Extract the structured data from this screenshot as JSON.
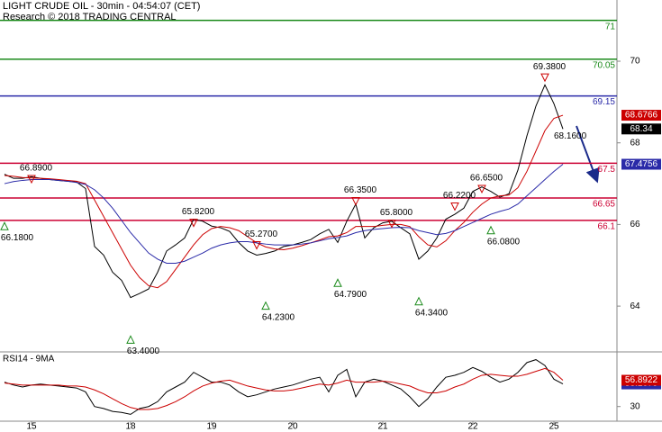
{
  "chart_data": [
    {
      "type": "line",
      "title": "LIGHT CRUDE OIL - 30min - 04:54:07 (CET)",
      "subtitle": "Research © 2018 TRADING CENTRAL",
      "categories": [
        null,
        null,
        null,
        "15",
        null,
        null,
        null,
        null,
        null,
        null,
        null,
        null,
        null,
        null,
        "18",
        null,
        null,
        null,
        null,
        null,
        null,
        null,
        null,
        "19",
        null,
        null,
        null,
        null,
        null,
        null,
        null,
        null,
        "20",
        null,
        null,
        null,
        null,
        null,
        null,
        null,
        null,
        null,
        "21",
        null,
        null,
        null,
        null,
        null,
        null,
        null,
        null,
        null,
        "22",
        null,
        null,
        null,
        null,
        null,
        null,
        null,
        null,
        "25",
        null
      ],
      "ylim": [
        62.9,
        71.5
      ],
      "yticks": [
        70,
        68,
        66,
        64
      ],
      "series": [
        {
          "color": "#000000",
          "values": [
            67.23,
            67.13,
            67.13,
            67.17,
            67.13,
            67.1,
            67.08,
            67.06,
            67.04,
            66.88,
            65.46,
            65.25,
            64.83,
            64.63,
            64.21,
            64.31,
            64.42,
            64.83,
            65.35,
            65.5,
            65.67,
            66.13,
            66.08,
            65.96,
            65.92,
            65.83,
            65.56,
            65.35,
            65.25,
            65.29,
            65.35,
            65.46,
            65.5,
            65.56,
            65.63,
            65.77,
            65.88,
            65.56,
            66.08,
            66.5,
            65.67,
            65.92,
            66.04,
            66.08,
            65.92,
            65.77,
            65.15,
            65.35,
            65.67,
            66.13,
            66.25,
            66.4,
            66.81,
            66.92,
            66.81,
            66.67,
            66.75,
            67.33,
            68.17,
            68.9,
            69.42,
            68.96,
            68.34
          ]
        },
        {
          "color": "#cc0000",
          "values": [
            67.2,
            67.18,
            67.15,
            67.14,
            67.13,
            67.12,
            67.1,
            67.08,
            67.06,
            67.0,
            66.6,
            66.2,
            65.8,
            65.4,
            65.0,
            64.7,
            64.5,
            64.45,
            64.6,
            64.9,
            65.2,
            65.5,
            65.75,
            65.9,
            65.95,
            65.92,
            65.85,
            65.7,
            65.55,
            65.45,
            65.4,
            65.38,
            65.42,
            65.48,
            65.55,
            65.62,
            65.7,
            65.72,
            65.8,
            65.95,
            65.95,
            65.95,
            65.98,
            66.0,
            66.0,
            65.95,
            65.7,
            65.5,
            65.45,
            65.6,
            65.85,
            66.05,
            66.3,
            66.5,
            66.65,
            66.7,
            66.72,
            66.9,
            67.3,
            67.8,
            68.3,
            68.6,
            68.6766
          ]
        },
        {
          "color": "#2a2aa8",
          "values": [
            67.0,
            67.05,
            67.08,
            67.1,
            67.1,
            67.1,
            67.08,
            67.06,
            67.03,
            66.98,
            66.85,
            66.65,
            66.4,
            66.1,
            65.8,
            65.55,
            65.3,
            65.15,
            65.05,
            65.05,
            65.1,
            65.2,
            65.3,
            65.42,
            65.5,
            65.55,
            65.58,
            65.58,
            65.55,
            65.52,
            65.5,
            65.5,
            65.5,
            65.52,
            65.55,
            65.6,
            65.65,
            65.68,
            65.72,
            65.8,
            65.85,
            65.88,
            65.9,
            65.92,
            65.93,
            65.92,
            65.85,
            65.8,
            65.75,
            65.78,
            65.85,
            65.95,
            66.05,
            66.15,
            66.25,
            66.32,
            66.38,
            66.5,
            66.7,
            66.9,
            67.1,
            67.3,
            67.4756
          ]
        }
      ],
      "pivot_highs": {
        "color": "#cc0000",
        "values": [
          null,
          null,
          null,
          66.89,
          null,
          null,
          null,
          null,
          null,
          null,
          null,
          null,
          null,
          null,
          null,
          null,
          null,
          null,
          null,
          null,
          null,
          65.82,
          null,
          null,
          null,
          null,
          null,
          null,
          65.27,
          null,
          null,
          null,
          null,
          null,
          null,
          null,
          null,
          null,
          null,
          66.35,
          null,
          null,
          null,
          65.8,
          null,
          null,
          null,
          null,
          null,
          null,
          66.22,
          null,
          null,
          66.65,
          null,
          null,
          null,
          null,
          null,
          null,
          69.38,
          null,
          null
        ],
        "value_labels": [
          null,
          null,
          null,
          "66.8900",
          null,
          null,
          null,
          null,
          null,
          null,
          null,
          null,
          null,
          null,
          null,
          null,
          null,
          null,
          null,
          null,
          null,
          "65.8200",
          null,
          null,
          null,
          null,
          null,
          null,
          "65.2700",
          null,
          null,
          null,
          null,
          null,
          null,
          null,
          null,
          null,
          null,
          "66.3500",
          null,
          null,
          null,
          "65.8000",
          null,
          null,
          null,
          null,
          null,
          null,
          "66.2200",
          null,
          null,
          "66.6500",
          null,
          null,
          null,
          null,
          null,
          null,
          "69.3800",
          null,
          null
        ]
      },
      "pivot_lows": {
        "color": "#1a8a1a",
        "values": [
          66.18,
          null,
          null,
          null,
          null,
          null,
          null,
          null,
          null,
          null,
          null,
          null,
          null,
          null,
          63.4,
          null,
          null,
          null,
          null,
          null,
          null,
          null,
          null,
          null,
          null,
          null,
          null,
          null,
          null,
          64.23,
          null,
          null,
          null,
          null,
          null,
          null,
          null,
          64.79,
          null,
          null,
          null,
          null,
          null,
          null,
          null,
          null,
          64.34,
          null,
          null,
          null,
          null,
          null,
          null,
          null,
          66.08,
          null,
          null,
          null,
          null,
          null,
          null,
          null,
          null
        ],
        "value_labels": [
          "66.1800",
          null,
          null,
          null,
          null,
          null,
          null,
          null,
          null,
          null,
          null,
          null,
          null,
          null,
          "63.4000",
          null,
          null,
          null,
          null,
          null,
          null,
          null,
          null,
          null,
          null,
          null,
          null,
          null,
          null,
          "64.2300",
          null,
          null,
          null,
          null,
          null,
          null,
          null,
          "64.7900",
          null,
          null,
          null,
          null,
          null,
          null,
          null,
          null,
          "64.3400",
          null,
          null,
          null,
          null,
          null,
          null,
          null,
          "66.0800",
          null,
          null,
          null,
          null,
          null,
          null,
          null,
          null
        ]
      },
      "target": {
        "value": 68.16,
        "label": "68.1600"
      },
      "levels": [
        {
          "value": 71,
          "color": "#1a8a1a"
        },
        {
          "value": 70.05,
          "color": "#1a8a1a"
        },
        {
          "value": 69.15,
          "color": "#2a2aa8"
        },
        {
          "value": 67.5,
          "color": "#cc0033"
        },
        {
          "value": 66.65,
          "color": "#cc0033"
        },
        {
          "value": 66.1,
          "color": "#cc0033"
        }
      ]
    },
    {
      "type": "line",
      "title": "RSI14 - 9MA",
      "ylim": [
        15,
        85
      ],
      "yticks": [
        30
      ],
      "series": [
        {
          "color": "#000000",
          "flag_color": "#2a2aa8",
          "values": [
            55,
            52,
            50,
            52,
            53,
            52,
            51,
            50,
            49,
            45,
            30,
            28,
            25,
            24,
            22,
            28,
            30,
            35,
            45,
            50,
            55,
            65,
            60,
            55,
            55,
            52,
            45,
            40,
            42,
            45,
            48,
            50,
            52,
            55,
            58,
            60,
            45,
            62,
            68,
            40,
            55,
            58,
            56,
            52,
            48,
            40,
            30,
            38,
            50,
            60,
            62,
            65,
            70,
            66,
            60,
            55,
            58,
            65,
            75,
            78,
            72,
            58,
            53.1679
          ]
        },
        {
          "color": "#cc0000",
          "flag_color": "#cc0000",
          "values": [
            54,
            53,
            52,
            52,
            52,
            52,
            52,
            51,
            51,
            50,
            47,
            43,
            38,
            33,
            29,
            27,
            27,
            28,
            31,
            35,
            40,
            46,
            51,
            54,
            56,
            57,
            54,
            51,
            49,
            47,
            46,
            46,
            47,
            49,
            51,
            53,
            52,
            54,
            57,
            55,
            55,
            55,
            56,
            55,
            53,
            51,
            47,
            44,
            44,
            46,
            50,
            53,
            58,
            62,
            63,
            62,
            61,
            61,
            63,
            66,
            69,
            65,
            56.8922
          ]
        }
      ]
    }
  ]
}
